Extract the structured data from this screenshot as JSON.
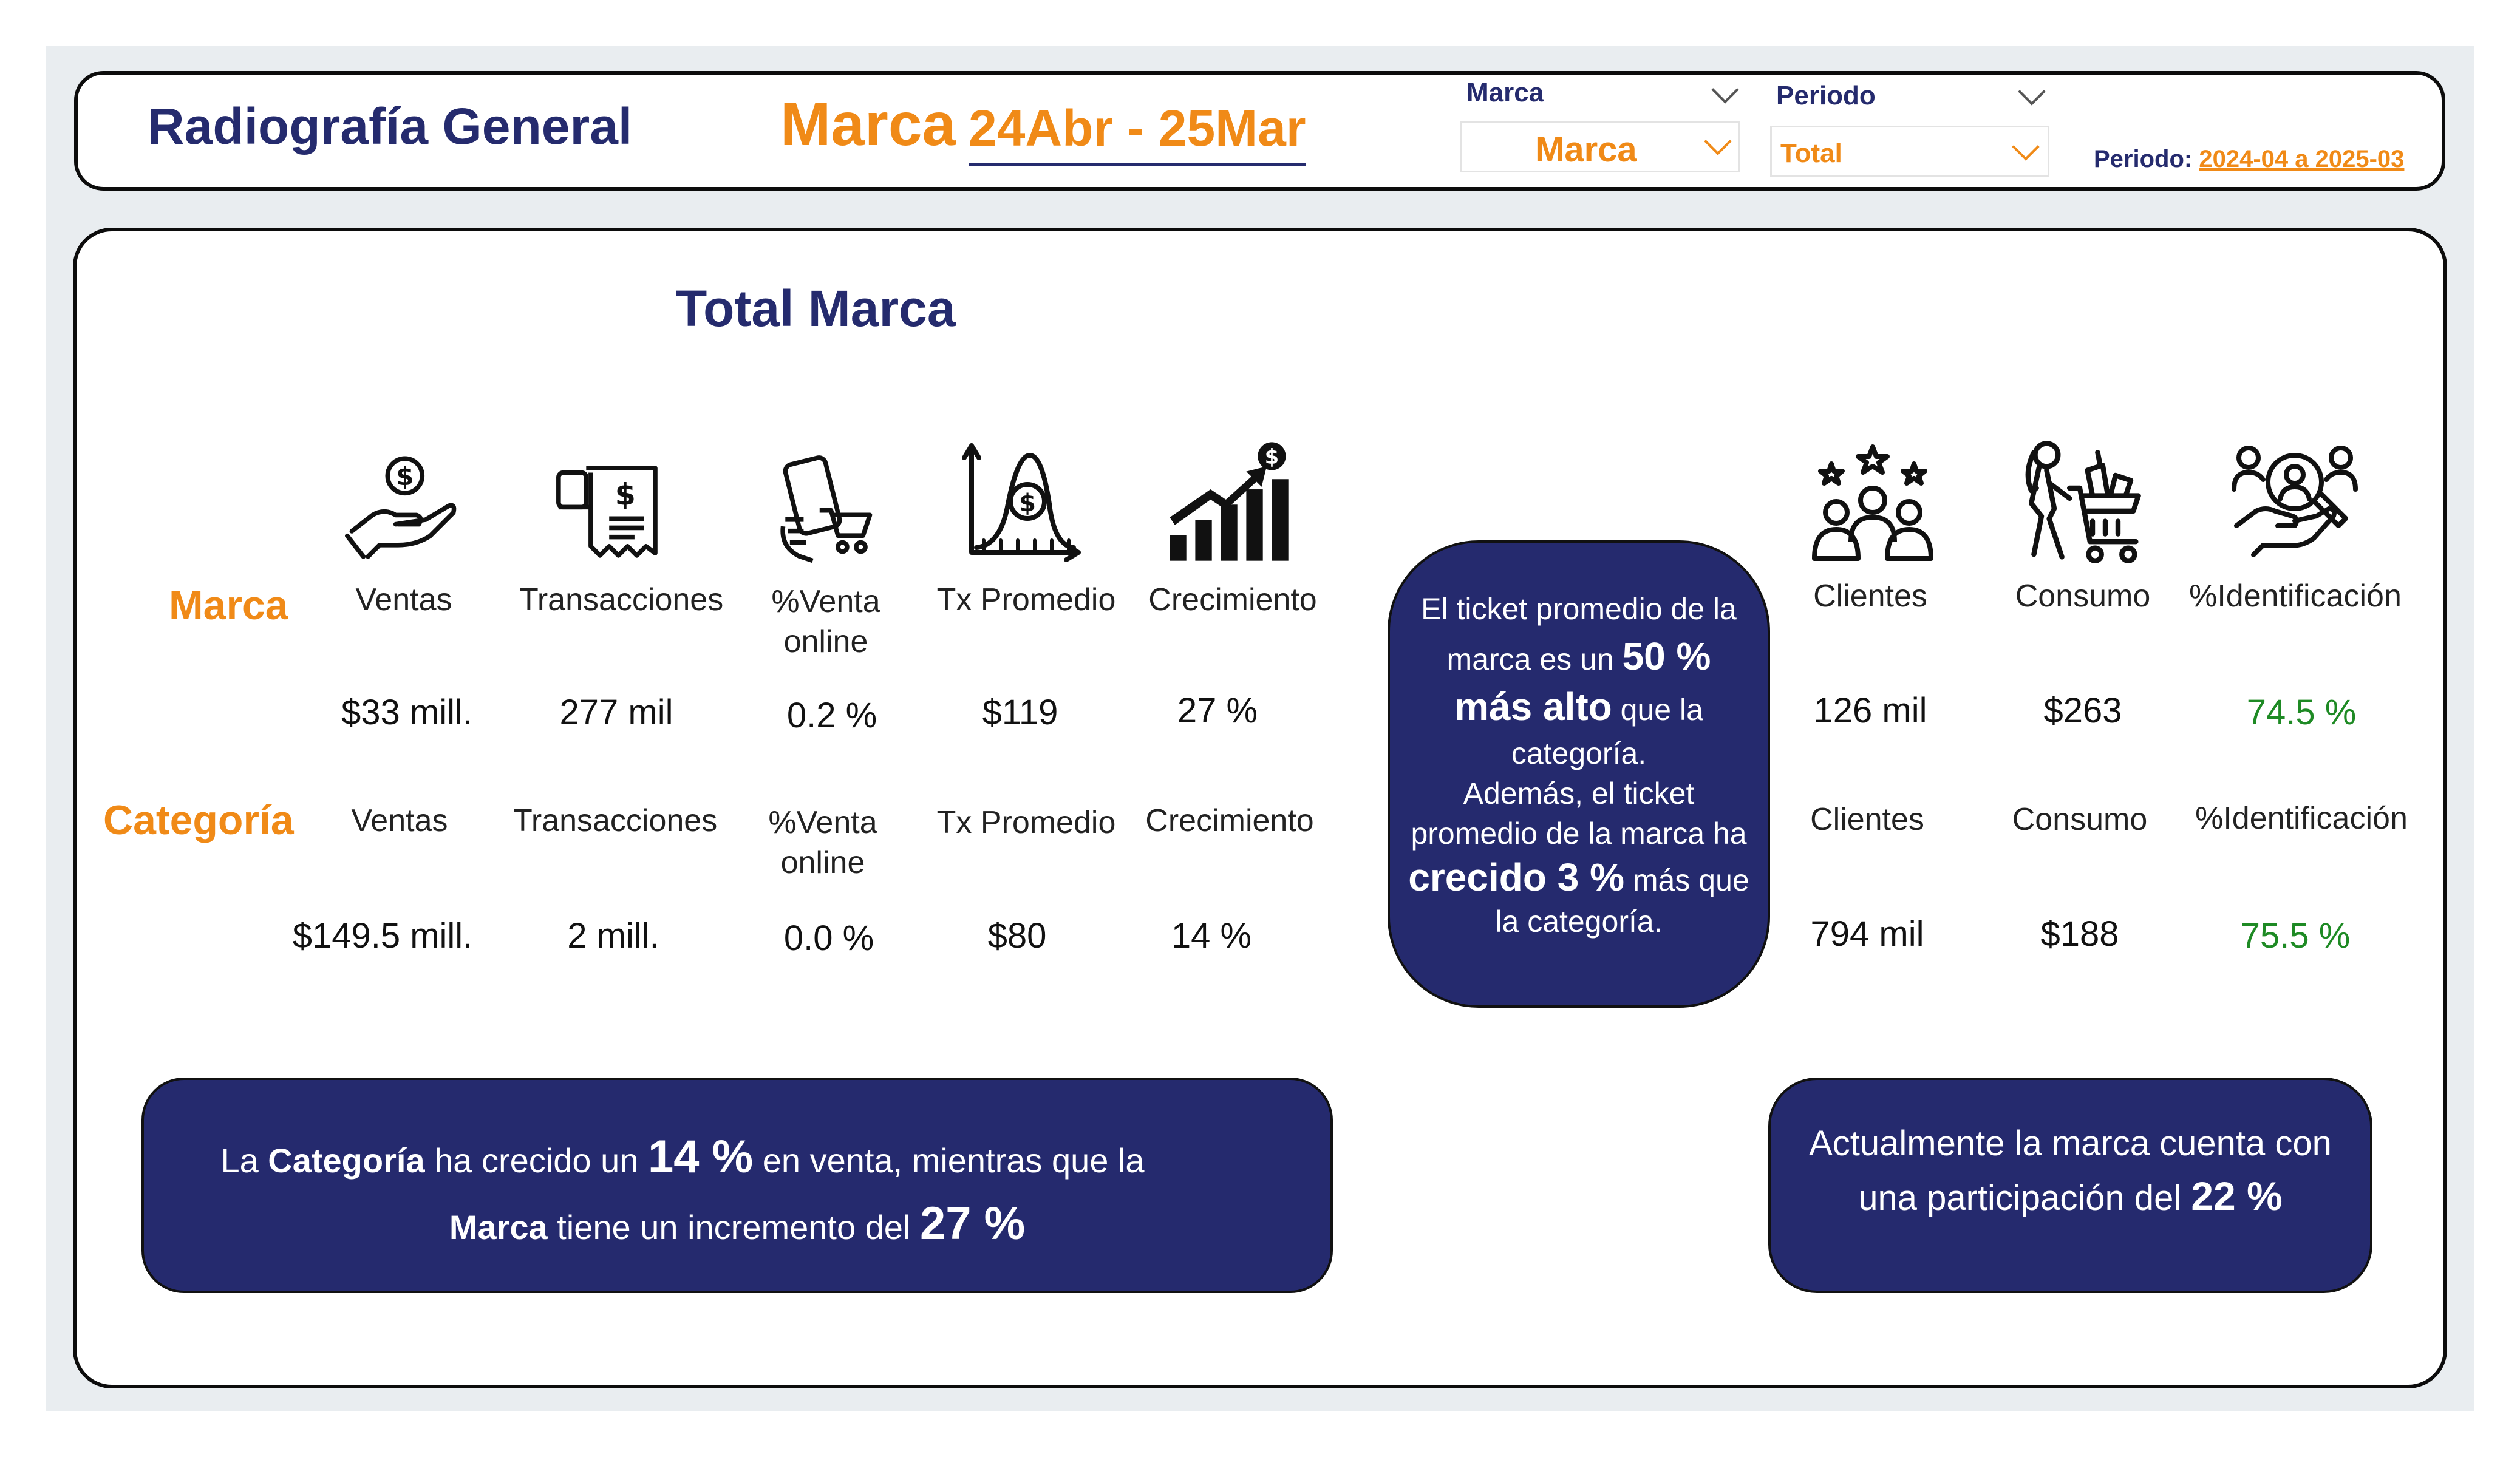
{
  "header": {
    "title": "Radiografía General",
    "brand_word": "Marca",
    "date_range": "24Abr - 25Mar",
    "slicers": {
      "marca": {
        "label": "Marca",
        "value": "Marca"
      },
      "periodo": {
        "label": "Periodo",
        "value": "Total"
      }
    },
    "period_info": {
      "label": "Periodo:",
      "value": "2024-04 a 2025-03"
    }
  },
  "main": {
    "section_title": "Total Marca",
    "row_labels": {
      "marca": "Marca",
      "categoria": "Categoría"
    },
    "metrics_left": [
      {
        "label": "Ventas",
        "icon": "money-hand-icon",
        "marca": "$33 mill.",
        "categoria": "$149.5 mill."
      },
      {
        "label": "Transacciones",
        "icon": "receipt-icon",
        "marca": "277 mil",
        "categoria": "2 mill."
      },
      {
        "label": "%Venta online",
        "label_l1": "%Venta",
        "label_l2": "online",
        "icon": "mobile-shopping-icon",
        "marca": "0.2 %",
        "categoria": "0.0 %"
      },
      {
        "label": "Tx Promedio",
        "icon": "bell-curve-money-icon",
        "marca": "$119",
        "categoria": "$80"
      },
      {
        "label": "Crecimiento",
        "icon": "growth-chart-icon",
        "marca": "27 %",
        "categoria": "14 %"
      }
    ],
    "metrics_right": [
      {
        "label": "Clientes",
        "icon": "customers-stars-icon",
        "marca": "126 mil",
        "categoria": "794 mil"
      },
      {
        "label": "Consumo",
        "icon": "shopper-cart-icon",
        "marca": "$263",
        "categoria": "$188"
      },
      {
        "label": "%Identificación",
        "icon": "customer-identification-icon",
        "marca": "74.5 %",
        "categoria": "75.5 %"
      }
    ],
    "ticket_bubble": {
      "l1": "El ticket promedio de la",
      "l2a": "marca es un ",
      "l2b": "50 %",
      "l3a": "más alto",
      "l3b": " que la",
      "l4": "categoría.",
      "l5": "Además, el ticket",
      "l6": "promedio de la marca ha",
      "l7a": "crecido 3 %",
      "l7b": " más que",
      "l8": "la categoría."
    },
    "growth_bubble": {
      "p1": "La ",
      "p2": "Categoría",
      "p3": " ha crecido un ",
      "p4": "14 %",
      "p5": " en venta, mientras que la",
      "q1": "Marca",
      "q2": " tiene un incremento del ",
      "q3": "27 %"
    },
    "share_bubble": {
      "l1": "Actualmente la marca cuenta con",
      "l2a": "una participación del ",
      "l2b": "22 %"
    }
  },
  "colors": {
    "navy": "#252a6e",
    "orange": "#f08a17",
    "green": "#1e8a24"
  }
}
